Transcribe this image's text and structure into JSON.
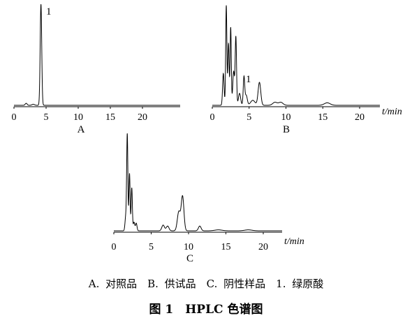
{
  "legend_text": "A. 对照品　B. 供试品　C. 阴性样品　1. 绿原酸",
  "figure_title": "图 1　HPLC 色谱图",
  "chart_data": [
    {
      "type": "line",
      "panel": "A",
      "xlabel": "",
      "ticks": [
        0,
        5,
        10,
        15,
        20
      ],
      "xlim": [
        0,
        26
      ],
      "peak_label": "1",
      "peaks": [
        {
          "t": 4.2,
          "h": 1.0,
          "w": 0.12
        },
        {
          "t": 1.9,
          "h": 0.02,
          "w": 0.15
        },
        {
          "t": 3.0,
          "h": 0.01,
          "w": 0.2
        }
      ],
      "labelled_peak_t": 4.2
    },
    {
      "type": "line",
      "panel": "B",
      "xlabel": "t/min",
      "ticks": [
        0,
        5,
        10,
        15,
        20
      ],
      "xlim": [
        0,
        22
      ],
      "peak_label": "1",
      "peaks": [
        {
          "t": 1.5,
          "h": 0.32,
          "w": 0.1
        },
        {
          "t": 1.9,
          "h": 1.0,
          "w": 0.08
        },
        {
          "t": 2.2,
          "h": 0.62,
          "w": 0.09
        },
        {
          "t": 2.5,
          "h": 0.78,
          "w": 0.08
        },
        {
          "t": 2.9,
          "h": 0.34,
          "w": 0.12
        },
        {
          "t": 3.2,
          "h": 0.68,
          "w": 0.09
        },
        {
          "t": 3.7,
          "h": 0.12,
          "w": 0.15
        },
        {
          "t": 4.3,
          "h": 0.28,
          "w": 0.1
        },
        {
          "t": 4.6,
          "h": 0.1,
          "w": 0.15
        },
        {
          "t": 5.5,
          "h": 0.05,
          "w": 0.3
        },
        {
          "t": 6.4,
          "h": 0.23,
          "w": 0.18
        },
        {
          "t": 8.5,
          "h": 0.03,
          "w": 0.3
        },
        {
          "t": 9.3,
          "h": 0.03,
          "w": 0.3
        },
        {
          "t": 15.6,
          "h": 0.025,
          "w": 0.4
        }
      ],
      "labelled_peak_t": 4.3
    },
    {
      "type": "line",
      "panel": "C",
      "xlabel": "t/min",
      "ticks": [
        0,
        5,
        10,
        15,
        20
      ],
      "xlim": [
        0,
        22.5
      ],
      "peak_label": "",
      "peaks": [
        {
          "t": 1.6,
          "h": 0.15,
          "w": 0.1
        },
        {
          "t": 1.8,
          "h": 1.0,
          "w": 0.08
        },
        {
          "t": 2.1,
          "h": 0.6,
          "w": 0.08
        },
        {
          "t": 2.4,
          "h": 0.45,
          "w": 0.08
        },
        {
          "t": 2.7,
          "h": 0.09,
          "w": 0.1
        },
        {
          "t": 3.0,
          "h": 0.08,
          "w": 0.1
        },
        {
          "t": 6.6,
          "h": 0.06,
          "w": 0.18
        },
        {
          "t": 7.2,
          "h": 0.05,
          "w": 0.18
        },
        {
          "t": 8.7,
          "h": 0.2,
          "w": 0.2
        },
        {
          "t": 9.2,
          "h": 0.36,
          "w": 0.18
        },
        {
          "t": 11.5,
          "h": 0.05,
          "w": 0.18
        },
        {
          "t": 14.0,
          "h": 0.01,
          "w": 0.5
        },
        {
          "t": 18.0,
          "h": 0.01,
          "w": 0.5
        }
      ],
      "labelled_peak_t": null
    }
  ]
}
